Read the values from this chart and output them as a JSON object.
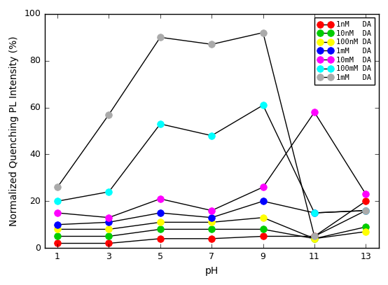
{
  "ph_values": [
    1,
    3,
    5,
    7,
    9,
    11,
    13
  ],
  "series": [
    {
      "label": "1nM   DA",
      "color": "#ff0000",
      "values": [
        2,
        2,
        4,
        4,
        5,
        5,
        20
      ]
    },
    {
      "label": "10nM  DA",
      "color": "#00cc00",
      "values": [
        5,
        5,
        8,
        8,
        8,
        4,
        9
      ]
    },
    {
      "label": "100nM DA",
      "color": "#ffff00",
      "values": [
        8,
        8,
        11,
        11,
        13,
        4,
        7
      ]
    },
    {
      "label": "1mM   DA",
      "color": "#0000ff",
      "values": [
        10,
        11,
        15,
        13,
        20,
        15,
        16
      ]
    },
    {
      "label": "10mM  DA",
      "color": "#ff00ff",
      "values": [
        15,
        13,
        21,
        16,
        26,
        58,
        23
      ]
    },
    {
      "label": "100mM DA",
      "color": "#00ffff",
      "values": [
        20,
        24,
        53,
        48,
        61,
        15,
        16
      ]
    },
    {
      "label": "1mM   DA",
      "color": "#aaaaaa",
      "values": [
        26,
        57,
        90,
        87,
        92,
        5,
        16
      ]
    }
  ],
  "xlabel": "pH",
  "ylabel": "Normalized Quenching PL Intensity (%)",
  "ylim": [
    0,
    100
  ],
  "xlim": [
    0.5,
    13.5
  ],
  "xticks": [
    1,
    3,
    5,
    7,
    9,
    11,
    13
  ],
  "yticks": [
    0,
    20,
    40,
    60,
    80,
    100
  ],
  "line_color": "black",
  "line_width": 1.0,
  "marker_size": 7,
  "legend_fontsize": 7.5,
  "axis_fontsize": 10,
  "tick_fontsize": 9,
  "fig_width": 5.54,
  "fig_height": 4.07,
  "dpi": 100
}
